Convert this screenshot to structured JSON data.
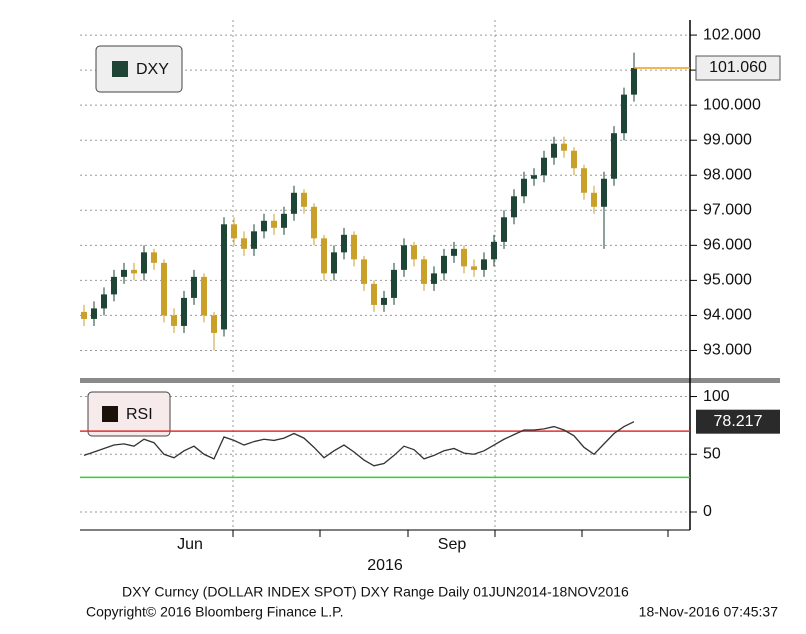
{
  "chart_data": [
    {
      "type": "candlestick",
      "legend": "DXY",
      "up_color": "#1f4536",
      "down_color": "#c9a02a",
      "last_color": "#e8a020",
      "open": [
        94.1,
        93.9,
        94.2,
        94.6,
        95.1,
        95.3,
        95.2,
        95.8,
        95.5,
        94.0,
        93.7,
        94.5,
        95.1,
        94.0,
        93.6,
        96.6,
        96.2,
        95.9,
        96.4,
        96.7,
        96.5,
        96.9,
        97.5,
        97.1,
        96.2,
        95.2,
        95.8,
        96.3,
        95.6,
        94.9,
        94.3,
        94.5,
        95.3,
        96.0,
        95.6,
        94.9,
        95.2,
        95.7,
        95.9,
        95.4,
        95.3,
        95.6,
        96.1,
        96.8,
        97.4,
        97.9,
        98.0,
        98.5,
        98.9,
        98.7,
        98.2,
        97.5,
        97.1,
        97.9,
        99.2,
        100.3
      ],
      "high": [
        94.3,
        94.4,
        94.8,
        95.3,
        95.5,
        95.5,
        96.0,
        95.9,
        95.6,
        94.2,
        94.7,
        95.3,
        95.2,
        94.1,
        96.8,
        96.8,
        96.4,
        96.6,
        96.9,
        96.9,
        97.1,
        97.7,
        97.6,
        97.2,
        96.3,
        96.0,
        96.5,
        96.4,
        95.7,
        95.0,
        94.7,
        95.5,
        96.2,
        96.1,
        95.7,
        95.4,
        95.9,
        96.1,
        96.0,
        95.6,
        95.8,
        96.3,
        97.0,
        97.6,
        98.1,
        98.2,
        98.7,
        99.1,
        99.1,
        98.8,
        98.3,
        97.7,
        98.1,
        99.4,
        100.5,
        101.5
      ],
      "low": [
        93.7,
        93.7,
        94.0,
        94.4,
        94.9,
        95.0,
        95.0,
        95.3,
        93.8,
        93.5,
        93.5,
        94.3,
        93.8,
        93.0,
        93.4,
        96.0,
        95.7,
        95.7,
        96.2,
        96.3,
        96.3,
        96.7,
        96.9,
        96.0,
        95.0,
        95.0,
        95.6,
        95.4,
        94.7,
        94.1,
        94.1,
        94.3,
        95.1,
        95.4,
        94.7,
        94.7,
        95.0,
        95.5,
        95.2,
        95.1,
        95.1,
        95.4,
        95.9,
        96.6,
        97.2,
        97.7,
        97.8,
        98.3,
        98.5,
        98.0,
        97.3,
        96.9,
        95.9,
        97.7,
        99.0,
        100.1
      ],
      "close": [
        93.9,
        94.2,
        94.6,
        95.1,
        95.3,
        95.2,
        95.8,
        95.5,
        94.0,
        93.7,
        94.5,
        95.1,
        94.0,
        93.5,
        96.6,
        96.2,
        95.9,
        96.4,
        96.7,
        96.5,
        96.9,
        97.5,
        97.1,
        96.2,
        95.2,
        95.8,
        96.3,
        95.6,
        94.9,
        94.3,
        94.5,
        95.3,
        96.0,
        95.6,
        94.9,
        95.2,
        95.7,
        95.9,
        95.4,
        95.3,
        95.6,
        96.1,
        96.8,
        97.4,
        97.9,
        98.0,
        98.5,
        98.9,
        98.7,
        98.2,
        97.5,
        97.1,
        97.9,
        99.2,
        100.3,
        101.06
      ],
      "close_last_label": "101.060",
      "xlim": [
        -0.4,
        60.6
      ],
      "ylim": [
        92.3,
        102.43
      ],
      "yticks": [
        {
          "value": 93,
          "label": "93.000"
        },
        {
          "value": 94,
          "label": "94.000"
        },
        {
          "value": 95,
          "label": "95.000"
        },
        {
          "value": 96,
          "label": "96.000"
        },
        {
          "value": 97,
          "label": "97.000"
        },
        {
          "value": 98,
          "label": "98.000"
        },
        {
          "value": 99,
          "label": "99.000"
        },
        {
          "value": 100,
          "label": "100.000"
        },
        {
          "value": 101,
          "label": "101.000"
        },
        {
          "value": 102,
          "label": "102.000"
        }
      ],
      "grid": true
    },
    {
      "type": "line",
      "series": [
        {
          "name": "RSI",
          "color": "#333333",
          "values": [
            49,
            52,
            55,
            58,
            59,
            57,
            63,
            60,
            50,
            47,
            53,
            57,
            50,
            46,
            65,
            62,
            58,
            61,
            63,
            62,
            64,
            68,
            64,
            56,
            47,
            53,
            58,
            52,
            45,
            40,
            42,
            49,
            57,
            54,
            46,
            49,
            53,
            55,
            51,
            50,
            53,
            58,
            63,
            67,
            71,
            71,
            72,
            74,
            71,
            66,
            56,
            50,
            59,
            68,
            74,
            78.217
          ]
        }
      ],
      "levels": [
        {
          "value": 70,
          "color": "#e03030"
        },
        {
          "value": 30,
          "color": "#30d030"
        }
      ],
      "xlim": [
        -0.4,
        60.6
      ],
      "ylim": [
        -15.6,
        110
      ],
      "yticks": [
        0,
        50,
        100
      ],
      "xticks": [
        {
          "value": 10.6,
          "label": "Jun"
        },
        {
          "value": 36.8,
          "label": "Sep"
        }
      ],
      "xgrid": [
        14.9,
        41.1
      ],
      "xminor_ticks": [
        23.6,
        32.4,
        49.8,
        58.4
      ],
      "year_label": "2016",
      "grid": true
    }
  ],
  "footer": {
    "description": "DXY Curncy (DOLLAR INDEX SPOT) DXY Range  Daily 01JUN2014-18NOV2016",
    "copyright": "Copyright© 2016 Bloomberg Finance L.P.",
    "timestamp": "18-Nov-2016 07:45:37"
  }
}
